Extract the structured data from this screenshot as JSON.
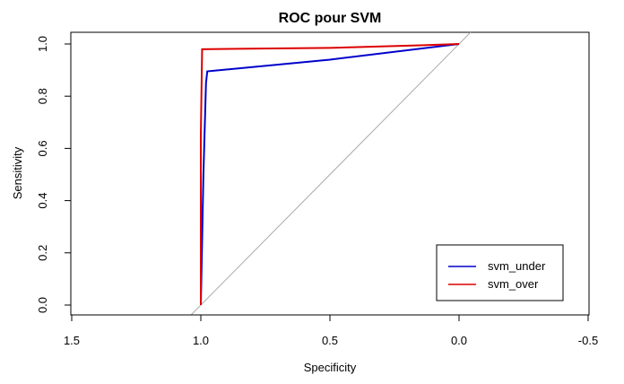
{
  "chart_data": {
    "type": "line",
    "title": "ROC pour SVM",
    "xlabel": "Specificity",
    "ylabel": "Sensitivity",
    "x_reversed": true,
    "xlim": [
      1.5,
      -0.5
    ],
    "ylim": [
      0.0,
      1.0
    ],
    "x_ticks": [
      1.5,
      1.0,
      0.5,
      0.0,
      -0.5
    ],
    "x_tick_labels": [
      "1.5",
      "1.0",
      "0.5",
      "0.0",
      "-0.5"
    ],
    "y_ticks": [
      0.0,
      0.2,
      0.4,
      0.6,
      0.8,
      1.0
    ],
    "y_tick_labels": [
      "0.0",
      "0.2",
      "0.4",
      "0.6",
      "0.8",
      "1.0"
    ],
    "grid": false,
    "legend_position": "bottom-right",
    "reference_line": {
      "from": [
        1,
        0
      ],
      "to": [
        0,
        1
      ],
      "color": "#aaaaaa"
    },
    "series": [
      {
        "name": "svm_under",
        "color": "#0000cc",
        "points": [
          [
            1.0,
            0.0
          ],
          [
            0.99,
            0.5
          ],
          [
            0.98,
            0.85
          ],
          [
            0.975,
            0.895
          ],
          [
            0.5,
            0.94
          ],
          [
            0.0,
            1.0
          ]
        ]
      },
      {
        "name": "svm_over",
        "color": "#dd0000",
        "points": [
          [
            1.0,
            0.0
          ],
          [
            1.0,
            0.65
          ],
          [
            0.995,
            0.98
          ],
          [
            0.5,
            0.985
          ],
          [
            0.15,
            0.995
          ],
          [
            0.0,
            1.0
          ]
        ]
      }
    ]
  }
}
